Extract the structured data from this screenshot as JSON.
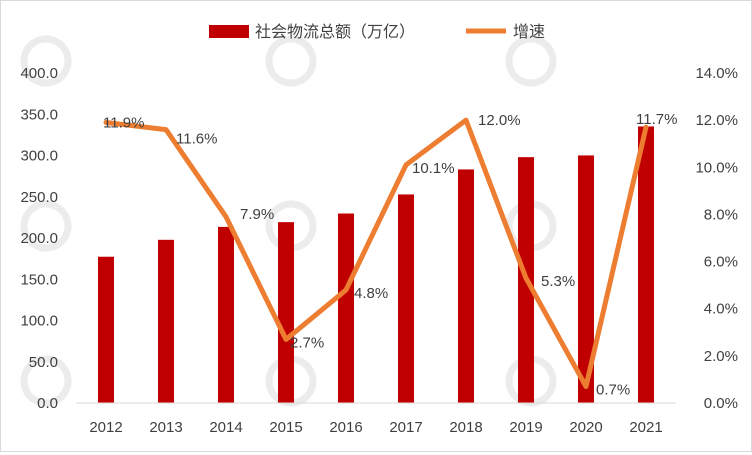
{
  "chart_data": {
    "type": "bar+line",
    "categories": [
      "2012",
      "2013",
      "2014",
      "2015",
      "2016",
      "2017",
      "2018",
      "2019",
      "2020",
      "2021"
    ],
    "series": [
      {
        "name": "社会物流总额（万亿）",
        "type": "bar",
        "axis": "left",
        "color": "#c00000",
        "values": [
          177.3,
          197.8,
          213.5,
          219.2,
          229.7,
          252.8,
          283.1,
          298.0,
          300.1,
          335.2
        ]
      },
      {
        "name": "增速",
        "type": "line",
        "axis": "right",
        "color": "#ed7d31",
        "values": [
          11.9,
          11.6,
          7.9,
          2.7,
          4.8,
          10.1,
          12.0,
          5.3,
          0.7,
          11.7
        ],
        "data_labels": [
          "11.9%",
          "11.6%",
          "7.9%",
          "2.7%",
          "4.8%",
          "10.1%",
          "12.0%",
          "5.3%",
          "0.7%",
          "11.7%"
        ]
      }
    ],
    "left_axis": {
      "min": 0,
      "max": 400,
      "step": 50,
      "tick_labels": [
        "0.0",
        "50.0",
        "100.0",
        "150.0",
        "200.0",
        "250.0",
        "300.0",
        "350.0",
        "400.0"
      ]
    },
    "right_axis": {
      "min": 0,
      "max": 14,
      "step": 2,
      "tick_labels": [
        "0.0%",
        "2.0%",
        "4.0%",
        "6.0%",
        "8.0%",
        "10.0%",
        "12.0%",
        "14.0%"
      ]
    },
    "legend_position": "top",
    "grid": false
  }
}
